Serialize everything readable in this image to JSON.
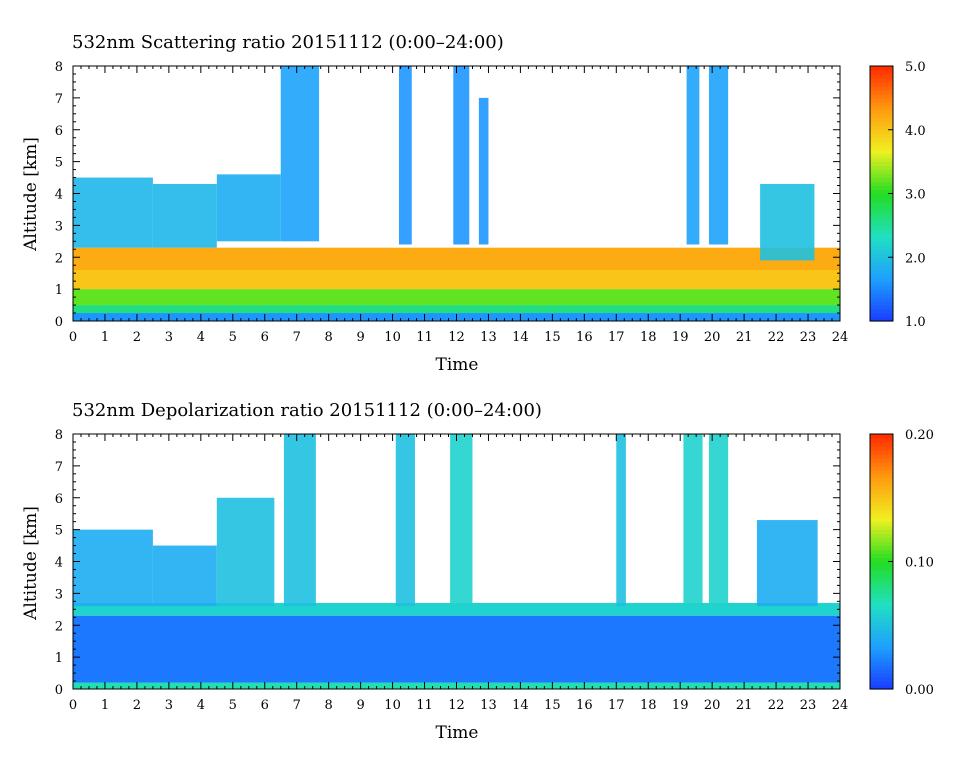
{
  "charts": [
    {
      "chart_data": {
        "type": "heatmap",
        "title": "532nm Scattering ratio  20151112 (0:00–24:00)",
        "xlabel": "Time",
        "ylabel": "Altitude [km]",
        "xlim": [
          0,
          24
        ],
        "ylim": [
          0,
          8
        ],
        "x_ticks": [
          "0",
          "1",
          "2",
          "3",
          "4",
          "5",
          "6",
          "7",
          "8",
          "9",
          "10",
          "11",
          "12",
          "13",
          "14",
          "15",
          "16",
          "17",
          "18",
          "19",
          "20",
          "21",
          "22",
          "23",
          "24"
        ],
        "y_ticks": [
          "0",
          "1",
          "2",
          "3",
          "4",
          "5",
          "6",
          "7",
          "8"
        ],
        "colorbar": {
          "min": 1.0,
          "max": 5.0,
          "ticks": [
            "1.0",
            "2.0",
            "3.0",
            "4.0",
            "5.0"
          ]
        },
        "colormap": [
          "#1a3cff",
          "#1ea0ff",
          "#20e0c0",
          "#22dd22",
          "#f0f020",
          "#ff9a10",
          "#ff2a00"
        ],
        "profile_layers_km": [
          {
            "top": 0.25,
            "value": 1.6
          },
          {
            "top": 0.5,
            "value": 2.6
          },
          {
            "top": 1.0,
            "value": 3.2
          },
          {
            "top": 1.6,
            "value": 4.0
          },
          {
            "top": 2.3,
            "value": 4.2
          }
        ],
        "clouds": [
          {
            "t0": 0.0,
            "t1": 2.5,
            "base": 2.3,
            "top": 4.5,
            "value": 1.9
          },
          {
            "t0": 2.5,
            "t1": 4.5,
            "base": 2.3,
            "top": 4.3,
            "value": 1.9
          },
          {
            "t0": 4.5,
            "t1": 6.5,
            "base": 2.5,
            "top": 4.6,
            "value": 1.8
          },
          {
            "t0": 6.5,
            "t1": 7.7,
            "base": 2.5,
            "top": 8.0,
            "value": 1.7
          },
          {
            "t0": 10.2,
            "t1": 10.6,
            "base": 2.4,
            "top": 8.0,
            "value": 1.6
          },
          {
            "t0": 11.9,
            "t1": 12.4,
            "base": 2.4,
            "top": 8.0,
            "value": 1.6
          },
          {
            "t0": 12.7,
            "t1": 13.0,
            "base": 2.4,
            "top": 7.0,
            "value": 1.6
          },
          {
            "t0": 19.2,
            "t1": 19.6,
            "base": 2.4,
            "top": 8.0,
            "value": 1.7
          },
          {
            "t0": 19.9,
            "t1": 20.5,
            "base": 2.4,
            "top": 8.0,
            "value": 1.7
          },
          {
            "t0": 21.5,
            "t1": 23.2,
            "base": 1.9,
            "top": 4.3,
            "value": 2.0
          }
        ]
      }
    },
    {
      "chart_data": {
        "type": "heatmap",
        "title": "532nm Depolarization ratio  20151112 (0:00–24:00)",
        "xlabel": "Time",
        "ylabel": "Altitude [km]",
        "xlim": [
          0,
          24
        ],
        "ylim": [
          0,
          8
        ],
        "x_ticks": [
          "0",
          "1",
          "2",
          "3",
          "4",
          "5",
          "6",
          "7",
          "8",
          "9",
          "10",
          "11",
          "12",
          "13",
          "14",
          "15",
          "16",
          "17",
          "18",
          "19",
          "20",
          "21",
          "22",
          "23",
          "24"
        ],
        "y_ticks": [
          "0",
          "1",
          "2",
          "3",
          "4",
          "5",
          "6",
          "7",
          "8"
        ],
        "colorbar": {
          "min": 0.0,
          "max": 0.2,
          "ticks": [
            "0.00",
            "0.10",
            "0.20"
          ]
        },
        "colormap": [
          "#1a3cff",
          "#1ea0ff",
          "#20e0c0",
          "#22dd22",
          "#f0f020",
          "#ff9a10",
          "#ff2a00"
        ],
        "profile_layers_km": [
          {
            "top": 0.2,
            "value": 0.07
          },
          {
            "top": 2.3,
            "value": 0.02
          },
          {
            "top": 2.7,
            "value": 0.06
          }
        ],
        "clouds": [
          {
            "t0": 0.0,
            "t1": 2.5,
            "base": 2.6,
            "top": 5.0,
            "value": 0.04
          },
          {
            "t0": 2.5,
            "t1": 4.5,
            "base": 2.6,
            "top": 4.5,
            "value": 0.04
          },
          {
            "t0": 4.5,
            "t1": 6.3,
            "base": 2.6,
            "top": 6.0,
            "value": 0.05
          },
          {
            "t0": 6.6,
            "t1": 7.6,
            "base": 2.6,
            "top": 8.0,
            "value": 0.05
          },
          {
            "t0": 10.1,
            "t1": 10.7,
            "base": 2.6,
            "top": 8.0,
            "value": 0.05
          },
          {
            "t0": 11.8,
            "t1": 12.5,
            "base": 2.6,
            "top": 8.0,
            "value": 0.06
          },
          {
            "t0": 17.0,
            "t1": 17.3,
            "base": 2.6,
            "top": 8.0,
            "value": 0.05
          },
          {
            "t0": 19.1,
            "t1": 19.7,
            "base": 2.6,
            "top": 8.0,
            "value": 0.06
          },
          {
            "t0": 19.9,
            "t1": 20.5,
            "base": 2.6,
            "top": 8.0,
            "value": 0.06
          },
          {
            "t0": 21.4,
            "t1": 23.3,
            "base": 2.6,
            "top": 5.3,
            "value": 0.04
          }
        ]
      }
    }
  ]
}
